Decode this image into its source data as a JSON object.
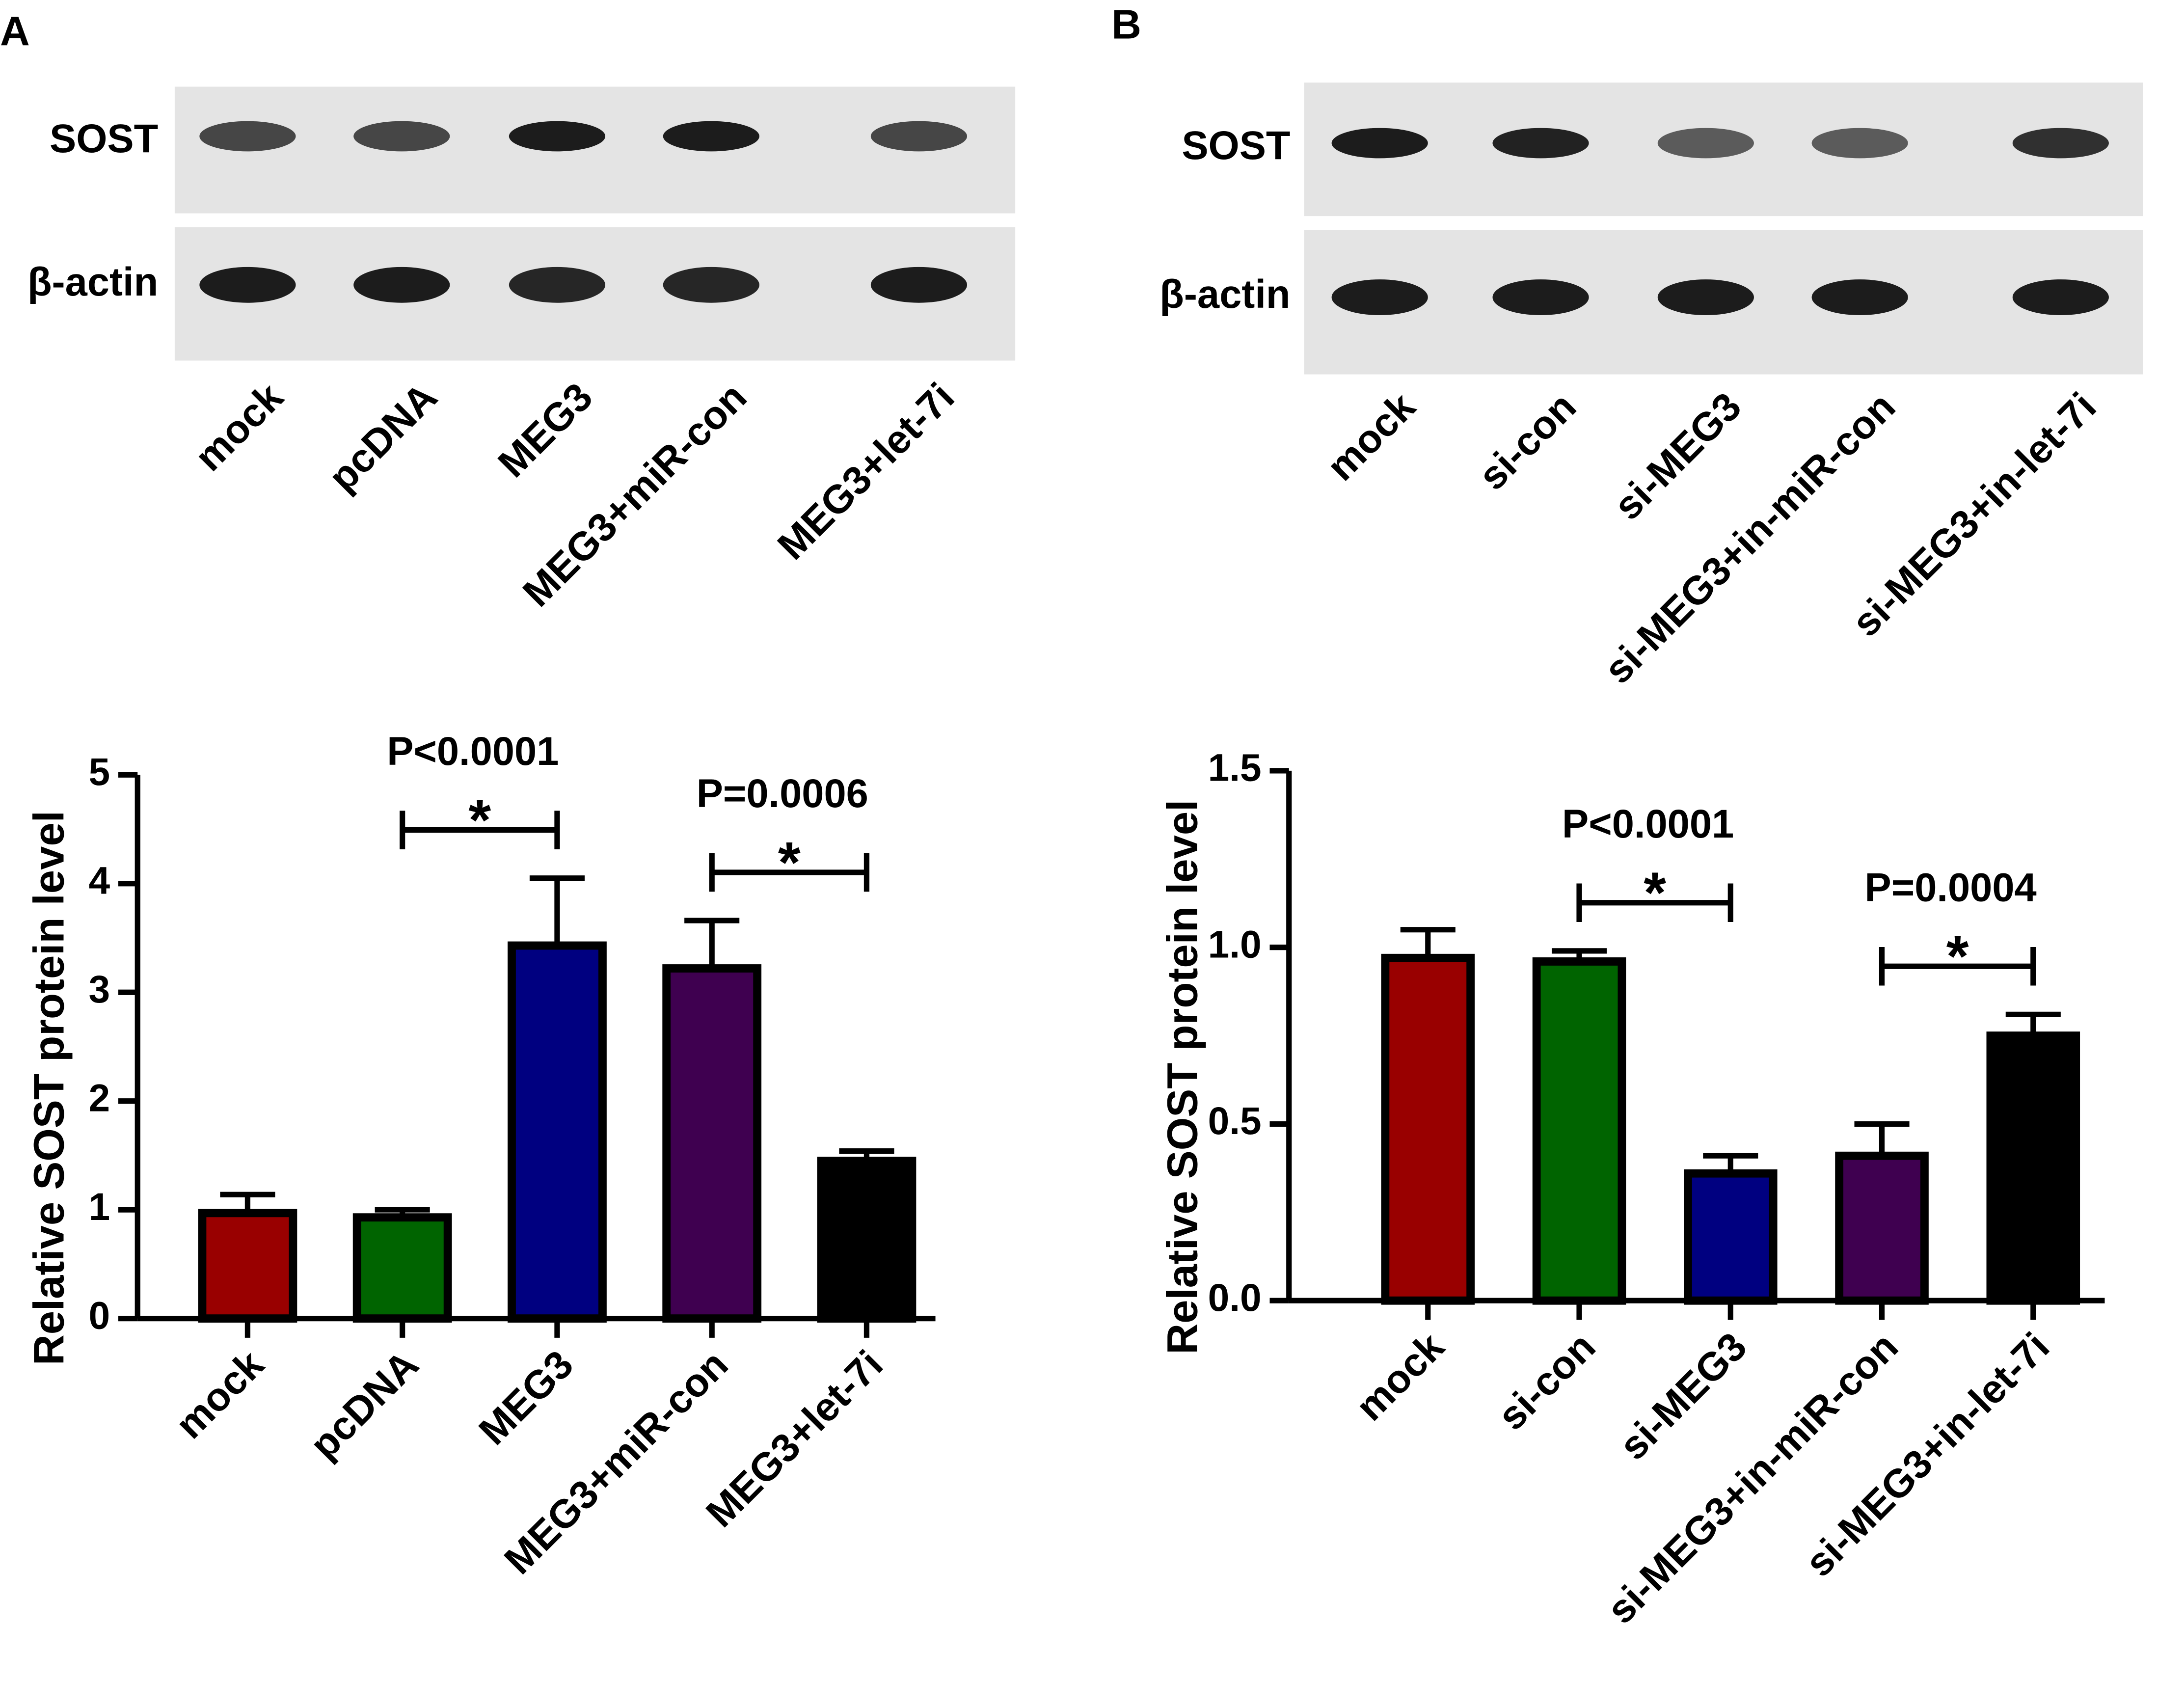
{
  "blots": [
    {
      "panel": "A",
      "rows": [
        "SOST",
        "β-actin"
      ],
      "lanes": [
        "mock",
        "pcDNA",
        "MEG3",
        "MEG3+miR-con",
        "MEG3+let-7i"
      ]
    },
    {
      "panel": "B",
      "rows": [
        "SOST",
        "β-actin"
      ],
      "lanes": [
        "mock",
        "si-con",
        "si-MEG3",
        "si-MEG3+in-miR-con",
        "si-MEG3+in-let-7i"
      ]
    }
  ],
  "chart_data": [
    {
      "type": "bar",
      "ylabel": "Relative SOST protein level",
      "categories": [
        "mock",
        "pcDNA",
        "MEG3",
        "MEG3+miR-con",
        "MEG3+let-7i"
      ],
      "values": [
        0.97,
        0.93,
        3.43,
        3.22,
        1.45
      ],
      "errors": [
        0.17,
        0.07,
        0.62,
        0.44,
        0.09
      ],
      "colors": [
        "#990000",
        "#006400",
        "#000080",
        "#3f0050",
        "#000000"
      ],
      "ylim": [
        0,
        5
      ],
      "yticks": [
        0,
        1,
        2,
        3,
        4,
        5
      ],
      "annotations": [
        {
          "text": "P<0.0001",
          "mark": "*",
          "between": [
            "pcDNA",
            "MEG3"
          ]
        },
        {
          "text": "P=0.0006",
          "mark": "*",
          "between": [
            "MEG3+miR-con",
            "MEG3+let-7i"
          ]
        }
      ]
    },
    {
      "type": "bar",
      "ylabel": "Relative SOST protein level",
      "categories": [
        "mock",
        "si-con",
        "si-MEG3",
        "si-MEG3+in-miR-con",
        "si-MEG3+in-let-7i"
      ],
      "values": [
        0.97,
        0.96,
        0.36,
        0.41,
        0.75
      ],
      "errors": [
        0.08,
        0.03,
        0.05,
        0.09,
        0.06
      ],
      "colors": [
        "#990000",
        "#006400",
        "#000080",
        "#3f0050",
        "#000000"
      ],
      "ylim": [
        0,
        1.5
      ],
      "yticks": [
        {
          "value": 0,
          "label": "0.0"
        },
        0.5,
        {
          "value": 1,
          "label": "1.0"
        },
        1.5
      ],
      "annotations": [
        {
          "text": "P<0.0001",
          "mark": "*",
          "between": [
            "si-con",
            "si-MEG3"
          ]
        },
        {
          "text": "P=0.0004",
          "mark": "*",
          "between": [
            "si-MEG3+in-miR-con",
            "si-MEG3+in-let-7i"
          ]
        }
      ]
    }
  ]
}
